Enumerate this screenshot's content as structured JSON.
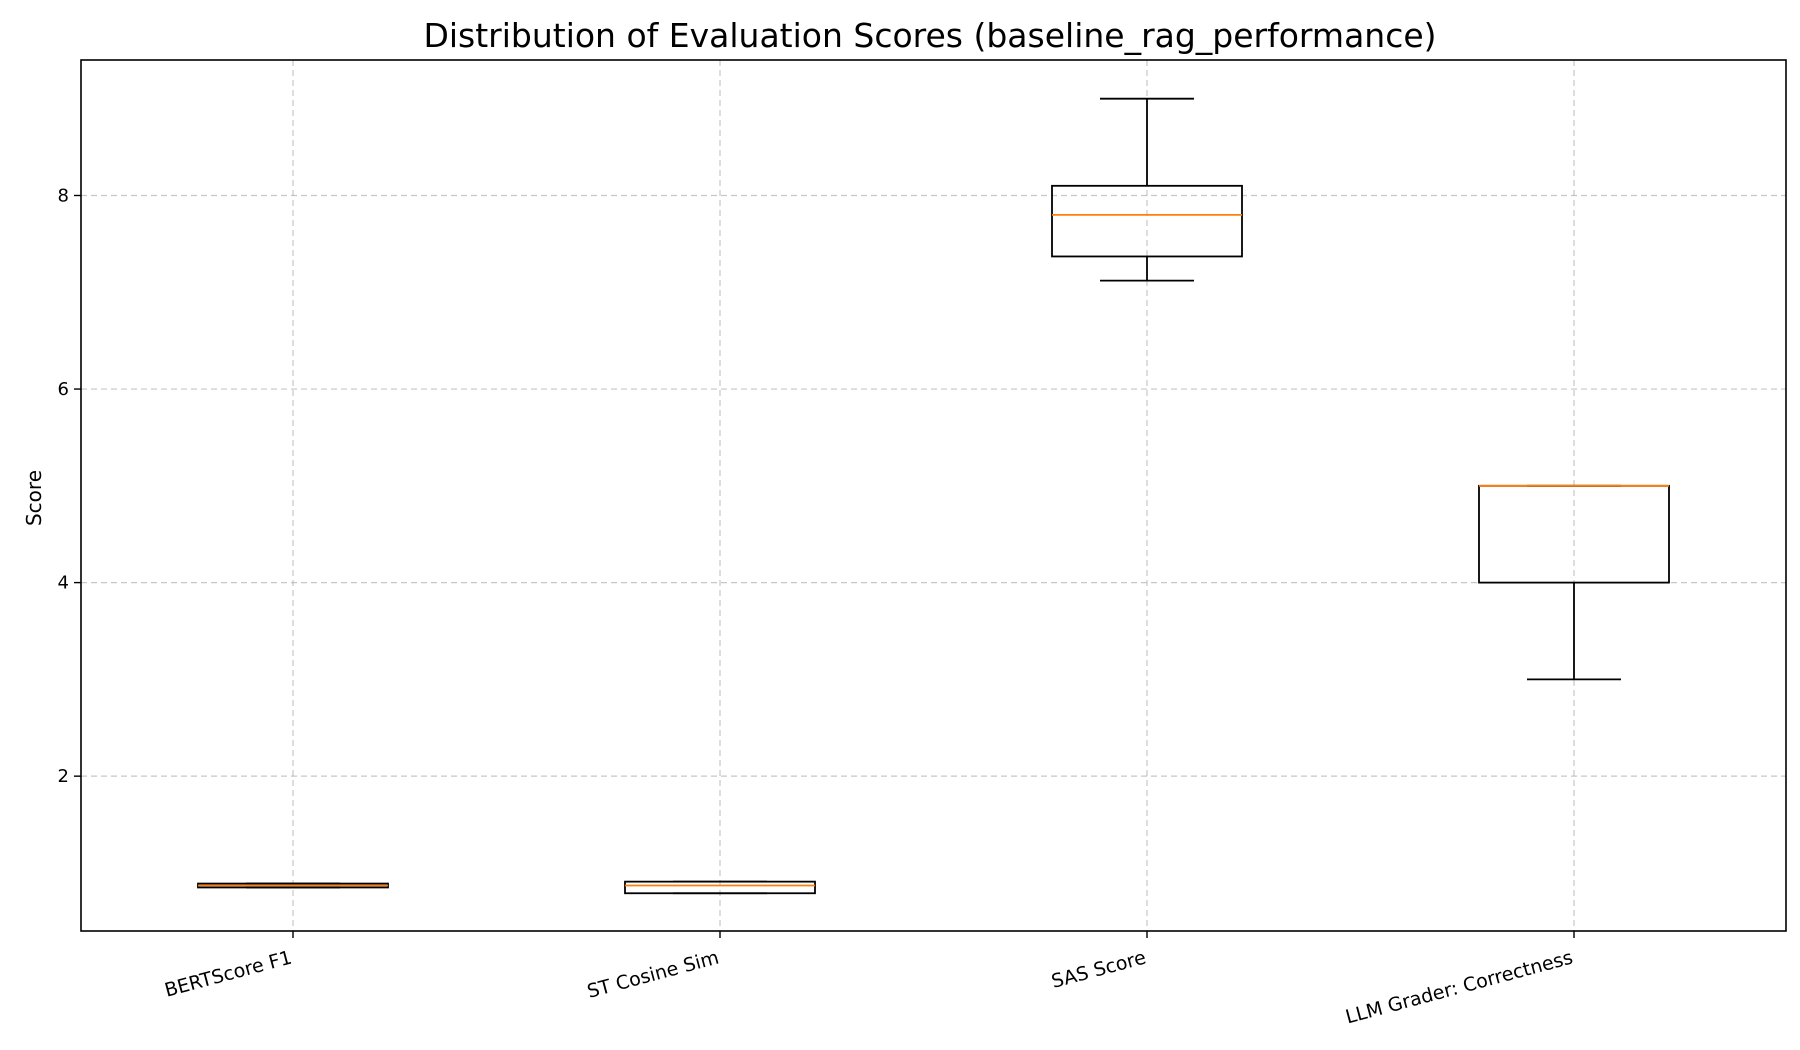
{
  "chart_data": {
    "type": "box",
    "title": "Distribution of Evaluation Scores (baseline_rag_performance)",
    "xlabel": "",
    "ylabel": "Score",
    "ylim": [
      0.4,
      9.4
    ],
    "yticks": [
      2,
      4,
      6,
      8
    ],
    "grid": true,
    "categories": [
      "BERTScore F1",
      "ST Cosine Sim",
      "SAS Score",
      "LLM Grader: Correctness"
    ],
    "boxes": [
      {
        "name": "BERTScore F1",
        "whisker_low": 0.85,
        "q1": 0.85,
        "median": 0.87,
        "q3": 0.89,
        "whisker_high": 0.89
      },
      {
        "name": "ST Cosine Sim",
        "whisker_low": 0.79,
        "q1": 0.79,
        "median": 0.87,
        "q3": 0.91,
        "whisker_high": 0.91
      },
      {
        "name": "SAS Score",
        "whisker_low": 7.12,
        "q1": 7.37,
        "median": 7.8,
        "q3": 8.1,
        "whisker_high": 9.0
      },
      {
        "name": "LLM Grader: Correctness",
        "whisker_low": 3.0,
        "q1": 4.0,
        "median": 5.0,
        "q3": 5.0,
        "whisker_high": 5.0
      }
    ],
    "colors": {
      "box": "#000000",
      "median": "#ff7f0e",
      "grid": "#b0b0b0"
    }
  }
}
